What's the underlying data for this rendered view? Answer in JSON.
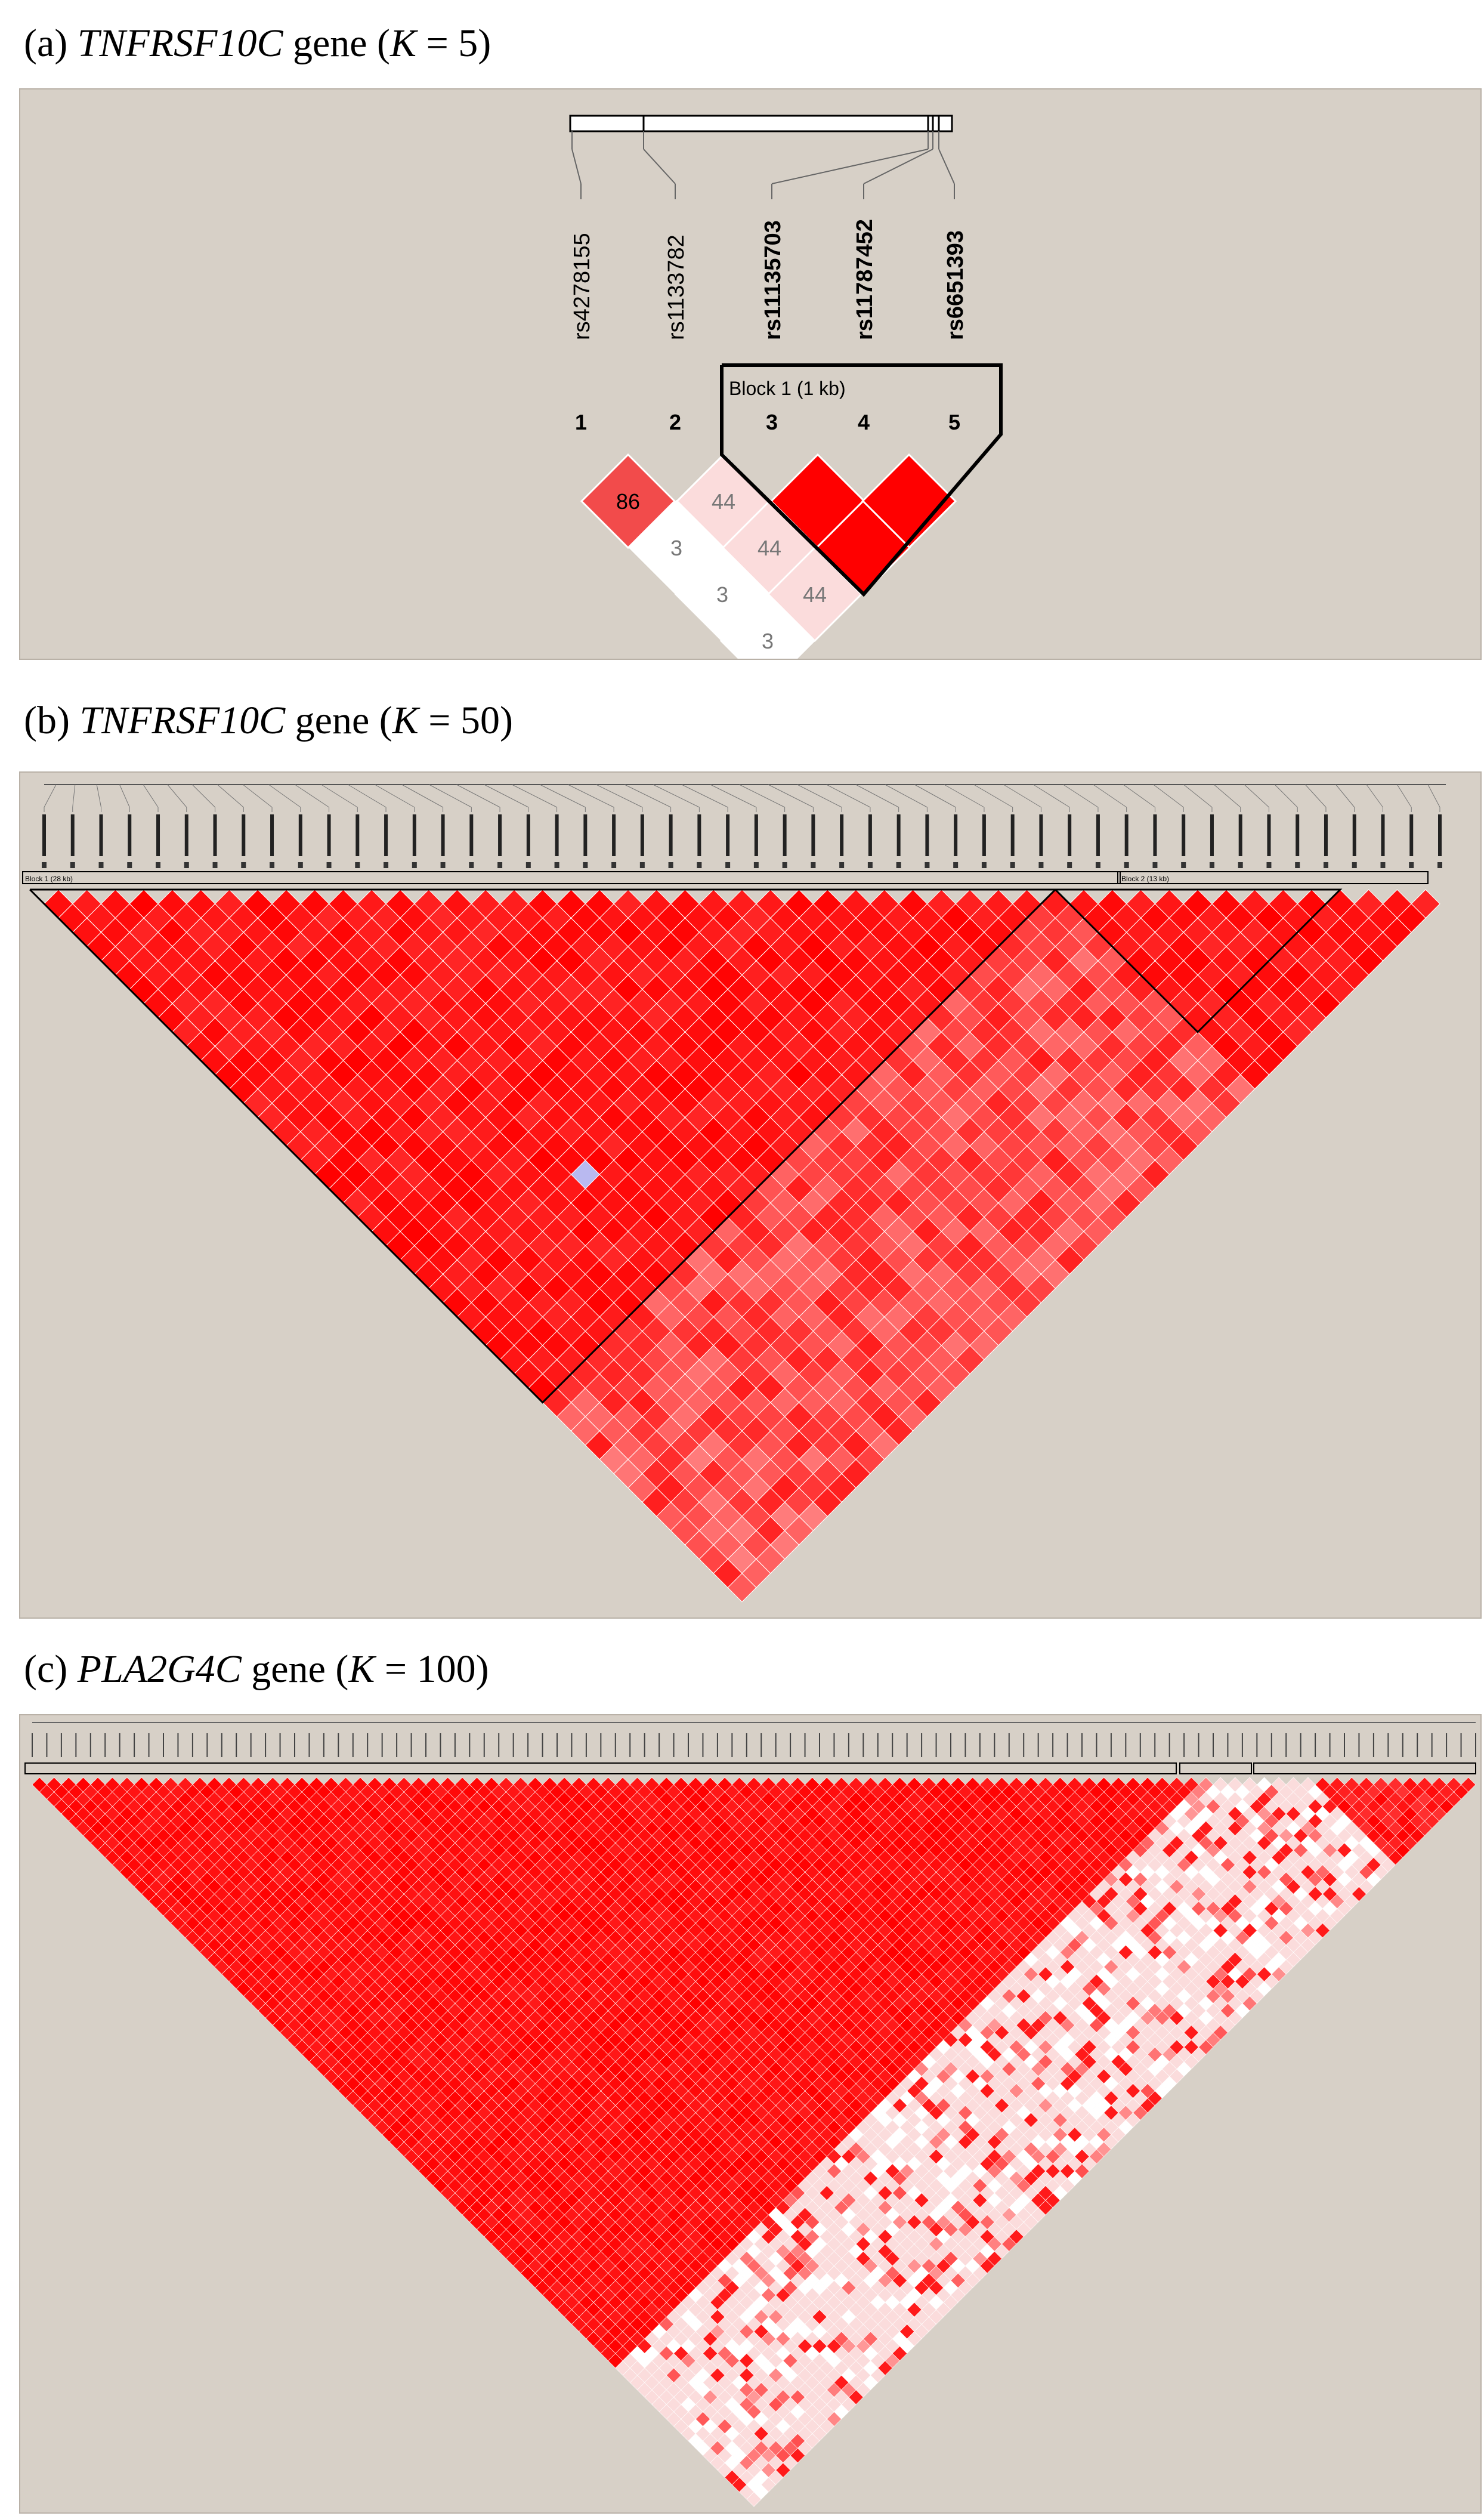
{
  "panels": [
    {
      "id": "a",
      "caption": {
        "prefix": "(a) ",
        "gene": "TNFRSF10C",
        "mid": " gene (",
        "k": "K",
        "suffix": " = 5)"
      },
      "snp_names": [
        "rs4278155",
        "rs1133782",
        "rs11135703",
        "rs11787452",
        "rs6651393"
      ],
      "snp_bold": [
        false,
        false,
        true,
        true,
        true
      ],
      "indices": [
        "1",
        "2",
        "3",
        "4",
        "5"
      ],
      "block_label": "Block 1 (1 kb)",
      "ld_rows": [
        [
          "86",
          "44",
          "",
          ""
        ],
        [
          "3",
          "44",
          ""
        ],
        [
          "3",
          "44"
        ],
        [
          "3"
        ]
      ],
      "ld_strength": [
        [
          0.86,
          0.44,
          1.0,
          1.0
        ],
        [
          0.03,
          0.44,
          1.0
        ],
        [
          0.03,
          0.44
        ],
        [
          0.03
        ]
      ],
      "colors": {
        "strong": "#ff0000",
        "mid": "#f24b4b",
        "weak": "#fbdcdc",
        "none": "#ffffff"
      }
    },
    {
      "id": "b",
      "caption": {
        "prefix": "(b) ",
        "gene": "TNFRSF10C",
        "mid": " gene (",
        "k": "K",
        "suffix": " = 50)"
      },
      "block_labels": [
        "Block 1 (28 kb)",
        "Block 2 (13 kb)"
      ]
    },
    {
      "id": "c",
      "caption": {
        "prefix": "(c) ",
        "gene": "PLA2G4C",
        "mid": " gene (",
        "k": "K",
        "suffix": " = 100)"
      }
    }
  ]
}
